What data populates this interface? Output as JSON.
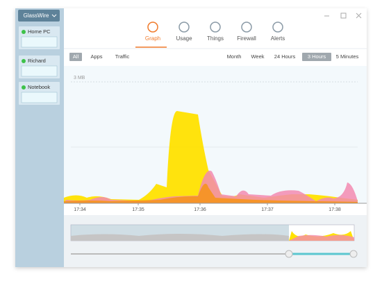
{
  "app": {
    "menu": "GlassWire"
  },
  "devices": [
    {
      "name": "Home PC"
    },
    {
      "name": "Richard"
    },
    {
      "name": "Notebook"
    }
  ],
  "tabs": [
    "Graph",
    "Usage",
    "Things",
    "Firewall",
    "Alerts"
  ],
  "active_tab": "Graph",
  "filters": [
    "All",
    "Apps",
    "Traffic"
  ],
  "active_filter": "All",
  "ranges": [
    "Month",
    "Week",
    "24 Hours",
    "3 Hours",
    "5 Minutes"
  ],
  "active_range": "3 Hours",
  "graph": {
    "y_label": "3 MB",
    "x_labels": [
      "17:34",
      "17:35",
      "17:36",
      "17:37",
      "17:38"
    ]
  }
}
